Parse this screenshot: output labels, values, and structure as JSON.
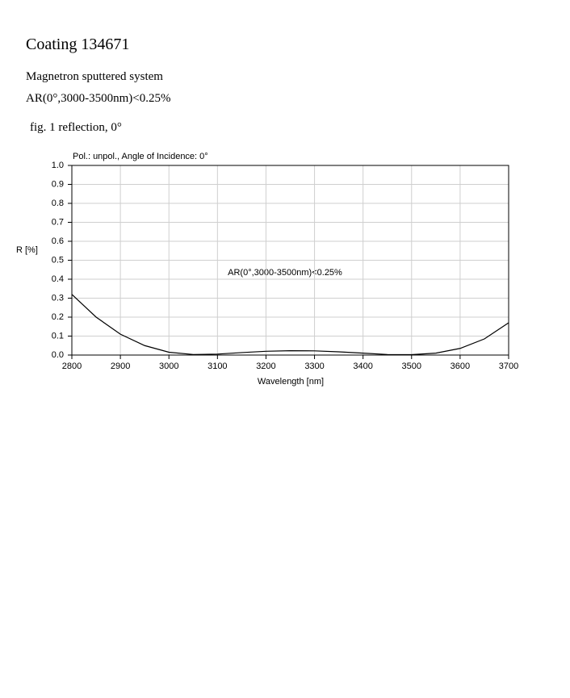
{
  "header": {
    "title": "Coating 134671",
    "subtitle": "Magnetron sputtered system",
    "spec": "AR(0°,3000-3500nm)<0.25%",
    "figure_caption": "fig. 1 reflection, 0°"
  },
  "chart_data": {
    "type": "line",
    "title": "Pol.: unpol., Angle of Incidence: 0°",
    "x_label": "Wavelength [nm]",
    "y_label": "R [%]",
    "annotation": "AR(0°,3000-3500nm)<0.25%",
    "x": [
      2800,
      2850,
      2900,
      2950,
      3000,
      3050,
      3100,
      3150,
      3200,
      3250,
      3300,
      3350,
      3400,
      3450,
      3500,
      3550,
      3600,
      3650,
      3700
    ],
    "series": [
      {
        "color": "#000000",
        "values": [
          0.32,
          0.2,
          0.11,
          0.05,
          0.015,
          0.003,
          0.005,
          0.013,
          0.02,
          0.023,
          0.022,
          0.017,
          0.01,
          0.003,
          0.002,
          0.01,
          0.035,
          0.085,
          0.17
        ]
      }
    ],
    "xlim": [
      2800,
      3700
    ],
    "xticks": [
      2800,
      2900,
      3000,
      3100,
      3200,
      3300,
      3400,
      3500,
      3600,
      3700
    ],
    "ylim": [
      0,
      1
    ],
    "yticks": [
      {
        "value": 0,
        "label": "0.0"
      },
      0.1,
      0.2,
      0.3,
      0.4,
      0.5,
      0.6,
      0.7,
      0.8,
      0.9,
      {
        "value": 1,
        "label": "1.0"
      }
    ],
    "grid": true
  }
}
